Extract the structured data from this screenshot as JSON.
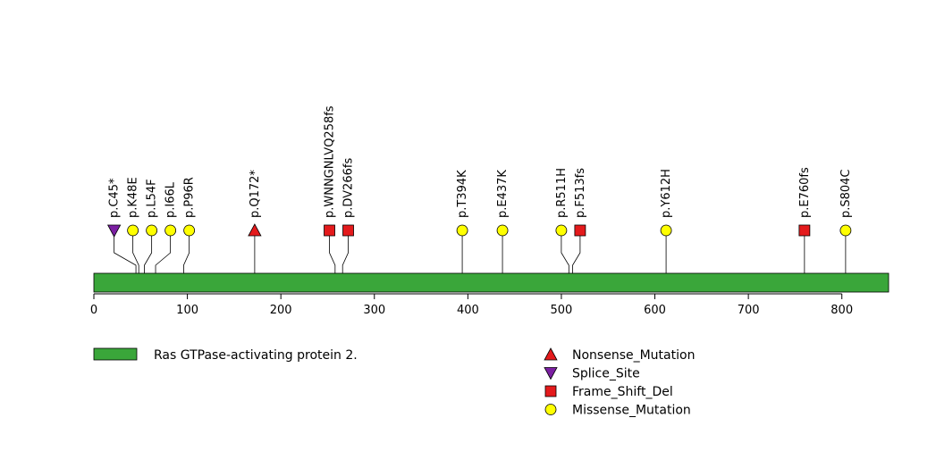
{
  "chart_data": {
    "type": "lollipop",
    "xlim": [
      0,
      850
    ],
    "ticks": [
      0,
      100,
      200,
      300,
      400,
      500,
      600,
      700,
      800
    ],
    "domain": {
      "name": "Ras GTPase-activating protein 2.",
      "start": 0,
      "end": 850,
      "color": "#3aa63a"
    },
    "mutations": [
      {
        "label": "p.C45*",
        "pos": 45,
        "type": "Splice_Site"
      },
      {
        "label": "p.K48E",
        "pos": 48,
        "type": "Missense_Mutation"
      },
      {
        "label": "p.L54F",
        "pos": 54,
        "type": "Missense_Mutation"
      },
      {
        "label": "p.I66L",
        "pos": 66,
        "type": "Missense_Mutation"
      },
      {
        "label": "p.P96R",
        "pos": 96,
        "type": "Missense_Mutation"
      },
      {
        "label": "p.Q172*",
        "pos": 172,
        "type": "Nonsense_Mutation"
      },
      {
        "label": "p.WNNGNLVQ258fs",
        "pos": 258,
        "type": "Frame_Shift_Del"
      },
      {
        "label": "p.DV266fs",
        "pos": 266,
        "type": "Frame_Shift_Del"
      },
      {
        "label": "p.T394K",
        "pos": 394,
        "type": "Missense_Mutation"
      },
      {
        "label": "p.E437K",
        "pos": 437,
        "type": "Missense_Mutation"
      },
      {
        "label": "p.R511H",
        "pos": 508,
        "type": "Missense_Mutation"
      },
      {
        "label": "p.F513fs",
        "pos": 512,
        "type": "Frame_Shift_Del"
      },
      {
        "label": "p.Y612H",
        "pos": 612,
        "type": "Missense_Mutation"
      },
      {
        "label": "p.E760fs",
        "pos": 760,
        "type": "Frame_Shift_Del"
      },
      {
        "label": "p.S804C",
        "pos": 804,
        "type": "Missense_Mutation"
      }
    ],
    "legend": [
      {
        "label": "Nonsense_Mutation",
        "shape": "triangle-up",
        "color": "#e41a1c"
      },
      {
        "label": "Splice_Site",
        "shape": "triangle-down",
        "color": "#7b1fa2"
      },
      {
        "label": "Frame_Shift_Del",
        "shape": "square",
        "color": "#e41a1c"
      },
      {
        "label": "Missense_Mutation",
        "shape": "circle",
        "color": "#ffff00"
      }
    ]
  }
}
